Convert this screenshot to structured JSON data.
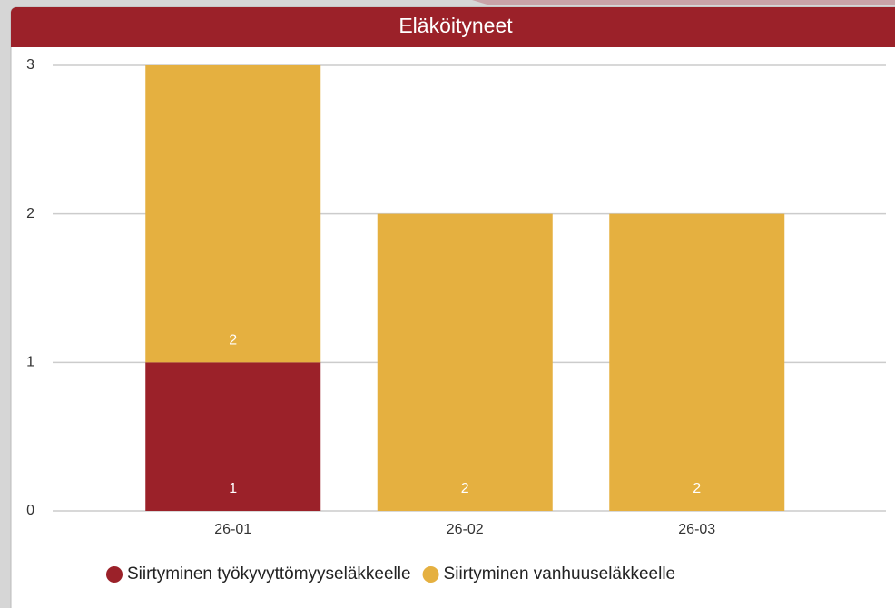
{
  "chart_data": {
    "type": "stacked-bar",
    "title": "Eläköityneet",
    "categories": [
      "26-01",
      "26-02",
      "26-03"
    ],
    "series": [
      {
        "name": "Siirtyminen työkyvyttömyyseläkkeelle",
        "color": "#9b2129",
        "values": [
          1,
          0,
          0
        ]
      },
      {
        "name": "Siirtyminen vanhuuseläkkeelle",
        "color": "#e5b040",
        "values": [
          2,
          2,
          2
        ]
      }
    ],
    "ylim": [
      0,
      3
    ],
    "yticks": [
      0,
      1,
      2,
      3
    ],
    "grid": true,
    "legend": "bottom"
  }
}
